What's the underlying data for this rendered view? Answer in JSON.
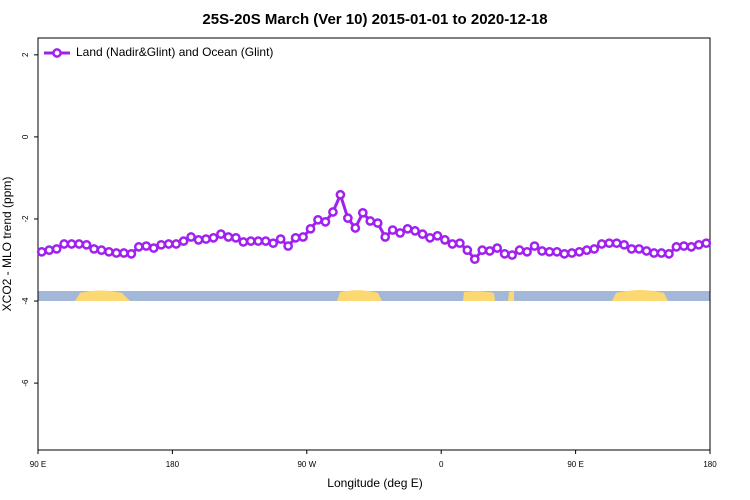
{
  "chart_data": {
    "type": "line",
    "title": "25S-20S March (Ver 10)   2015-01-01 to 2020-12-18",
    "x_label": "Longitude (deg E)",
    "y_label": "XCO2 - MLO trend (ppm)",
    "legend": "top-left",
    "xlim": [
      90,
      540
    ],
    "xticks": [
      {
        "value": 90,
        "label": "90 E"
      },
      180,
      {
        "value": 270,
        "label": "90 W"
      },
      {
        "value": 360,
        "label": "0"
      },
      {
        "value": 450,
        "label": "90 E"
      },
      {
        "value": 540,
        "label": "180"
      }
    ],
    "ylim": [
      -7.63,
      2.41
    ],
    "yticks": [
      2,
      0,
      -2,
      -4,
      -6
    ],
    "x": [
      92.5,
      97.5,
      102.5,
      107.5,
      112.5,
      117.5,
      122.5,
      127.5,
      132.5,
      137.5,
      142.5,
      147.5,
      152.5,
      157.5,
      162.5,
      167.5,
      172.5,
      177.5,
      182.5,
      187.5,
      192.5,
      197.5,
      202.5,
      207.5,
      212.5,
      217.5,
      222.5,
      227.5,
      232.5,
      237.5,
      242.5,
      247.5,
      252.5,
      257.5,
      262.5,
      267.5,
      272.5,
      277.5,
      282.5,
      287.5,
      292.5,
      297.5,
      302.5,
      307.5,
      312.5,
      317.5,
      322.5,
      327.5,
      332.5,
      337.5,
      342.5,
      347.5,
      352.5,
      357.5,
      362.5,
      367.5,
      372.5,
      377.5,
      382.5,
      387.5,
      392.5,
      397.5,
      402.5,
      407.5,
      412.5,
      417.5,
      422.5,
      427.5,
      432.5,
      437.5,
      442.5,
      447.5,
      452.5,
      457.5,
      462.5,
      467.5,
      472.5,
      477.5,
      482.5,
      487.5,
      492.5,
      497.5,
      502.5,
      507.5,
      512.5,
      517.5,
      522.5,
      527.5,
      532.5,
      537.5
    ],
    "series": [
      {
        "name": "Land (Nadir&Glint) and Ocean (Glint)",
        "color": "#a020f0",
        "values": [
          -2.8,
          -2.76,
          -2.73,
          -2.61,
          -2.61,
          -2.61,
          -2.63,
          -2.73,
          -2.76,
          -2.8,
          -2.83,
          -2.83,
          -2.85,
          -2.68,
          -2.66,
          -2.71,
          -2.63,
          -2.61,
          -2.61,
          -2.54,
          -2.44,
          -2.51,
          -2.49,
          -2.46,
          -2.37,
          -2.44,
          -2.46,
          -2.56,
          -2.54,
          -2.54,
          -2.54,
          -2.59,
          -2.49,
          -2.66,
          -2.46,
          -2.44,
          -2.24,
          -2.02,
          -2.07,
          -1.83,
          -1.41,
          -1.98,
          -2.22,
          -1.85,
          -2.05,
          -2.1,
          -2.44,
          -2.27,
          -2.34,
          -2.24,
          -2.29,
          -2.37,
          -2.46,
          -2.41,
          -2.51,
          -2.61,
          -2.59,
          -2.76,
          -2.98,
          -2.76,
          -2.78,
          -2.71,
          -2.85,
          -2.88,
          -2.76,
          -2.8,
          -2.66,
          -2.78,
          -2.8,
          -2.8,
          -2.85,
          -2.83,
          -2.8,
          -2.76,
          -2.73,
          -2.61,
          -2.59,
          -2.59,
          -2.63,
          -2.73,
          -2.73,
          -2.78,
          -2.83,
          -2.83,
          -2.85,
          -2.68,
          -2.66,
          -2.68,
          -2.63,
          -2.59
        ]
      }
    ]
  }
}
